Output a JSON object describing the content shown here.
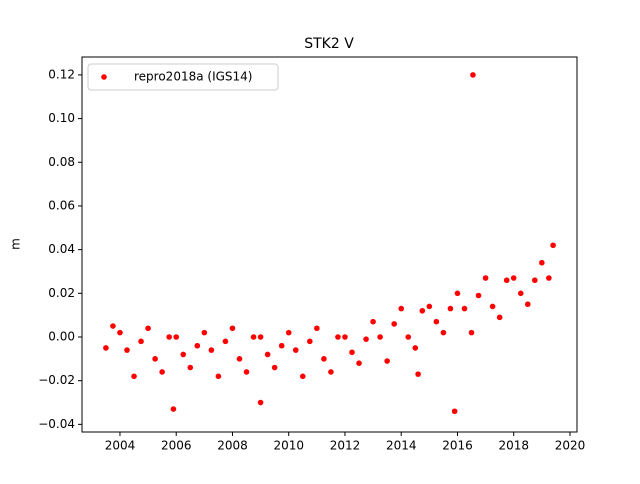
{
  "chart_data": {
    "type": "scatter",
    "title": "STK2 V",
    "ylabel": "m",
    "xlim": [
      2002.65,
      2020.25
    ],
    "ylim": [
      -0.0435,
      0.1282
    ],
    "xticks": [
      2004,
      2006,
      2008,
      2010,
      2012,
      2014,
      2016,
      2018,
      2020
    ],
    "yticks": [
      {
        "value": -0.04,
        "label": "−0.04"
      },
      {
        "value": -0.02,
        "label": "−0.02"
      },
      {
        "value": 0,
        "label": "0.00"
      },
      {
        "value": 0.02,
        "label": "0.02"
      },
      {
        "value": 0.04,
        "label": "0.04"
      },
      {
        "value": 0.06,
        "label": "0.06"
      },
      {
        "value": 0.08,
        "label": "0.08"
      },
      {
        "value": 0.1,
        "label": "0.10"
      },
      {
        "value": 0.12,
        "label": "0.12"
      }
    ],
    "legend": "upper left",
    "series": [
      {
        "name": "repro2018a (IGS14)",
        "color": "#ff0000",
        "x": [
          2003.5,
          2003.75,
          2004.0,
          2004.25,
          2004.5,
          2004.75,
          2005.0,
          2005.25,
          2005.5,
          2005.75,
          2006.0,
          2006.25,
          2006.5,
          2006.75,
          2007.0,
          2007.25,
          2007.5,
          2007.75,
          2008.0,
          2008.25,
          2008.5,
          2008.75,
          2009.0,
          2009.25,
          2009.5,
          2009.75,
          2010.0,
          2010.25,
          2010.5,
          2010.75,
          2011.0,
          2011.25,
          2011.5,
          2011.75,
          2012.0,
          2012.25,
          2012.5,
          2012.75,
          2013.0,
          2013.25,
          2013.5,
          2013.75,
          2014.0,
          2014.25,
          2014.5,
          2014.75,
          2015.0,
          2015.25,
          2015.5,
          2015.75,
          2016.0,
          2016.25,
          2016.5,
          2016.75,
          2017.0,
          2017.25,
          2017.5,
          2017.75,
          2018.0,
          2018.25,
          2018.5,
          2018.75,
          2019.0,
          2019.25,
          2005.9,
          2009.0,
          2014.6,
          2015.9,
          2016.55,
          2019.4
        ],
        "values": [
          -0.005,
          0.005,
          0.002,
          -0.006,
          -0.018,
          -0.002,
          0.004,
          -0.01,
          -0.016,
          0.0,
          0.0,
          -0.008,
          -0.014,
          -0.004,
          0.002,
          -0.006,
          -0.018,
          -0.002,
          0.004,
          -0.01,
          -0.016,
          0.0,
          0.0,
          -0.008,
          -0.014,
          -0.004,
          0.002,
          -0.006,
          -0.018,
          -0.002,
          0.004,
          -0.01,
          -0.016,
          0.0,
          0.0,
          -0.007,
          -0.012,
          -0.001,
          0.007,
          0.0,
          -0.011,
          0.006,
          0.013,
          0.0,
          -0.005,
          0.012,
          0.014,
          0.007,
          0.002,
          0.013,
          0.02,
          0.013,
          0.002,
          0.019,
          0.027,
          0.014,
          0.009,
          0.026,
          0.027,
          0.02,
          0.015,
          0.026,
          0.034,
          0.027,
          -0.033,
          -0.03,
          -0.017,
          -0.034,
          0.12,
          0.042
        ]
      }
    ]
  }
}
